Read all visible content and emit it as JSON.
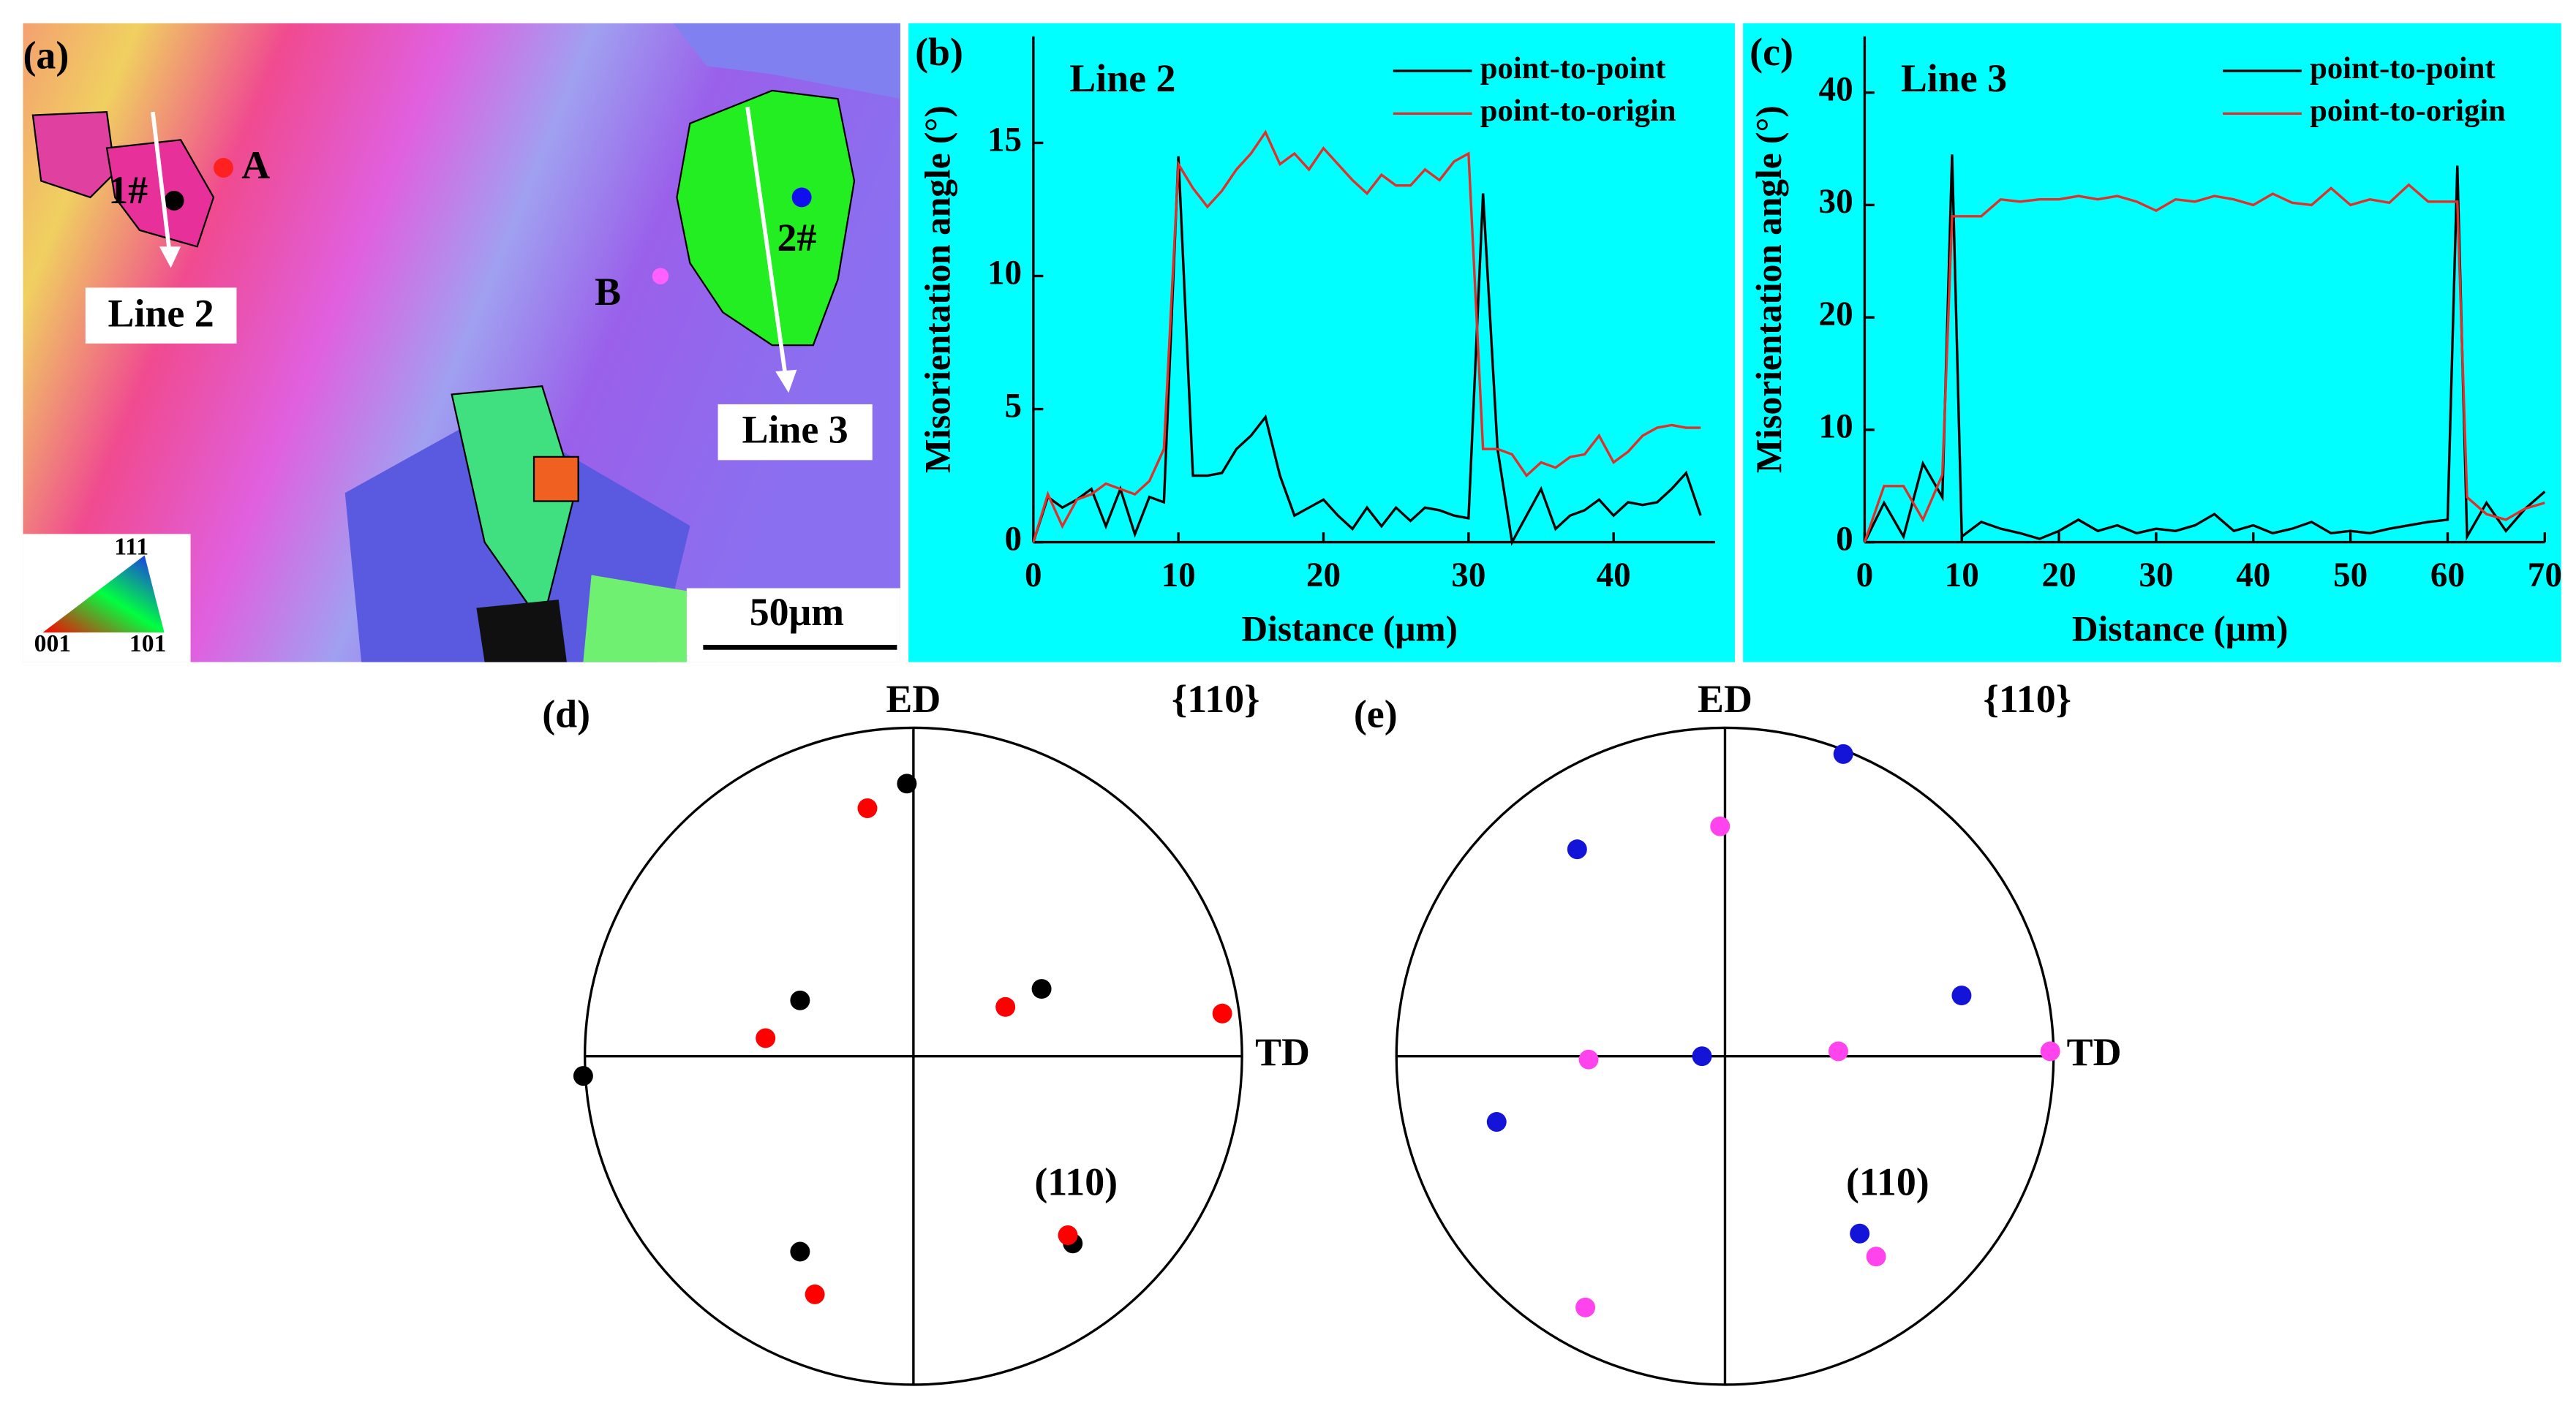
{
  "panel_a": {
    "label": "(a)",
    "point_a": "A",
    "point_b": "B",
    "grain_1": "1#",
    "grain_2": "2#",
    "line_2": "Line 2",
    "line_3": "Line 3",
    "scale": "50μm",
    "key_111": "111",
    "key_001": "001",
    "key_101": "101"
  },
  "chart_data": [
    {
      "type": "line",
      "panel": "(b)",
      "title": "Line 2",
      "xlabel": "Distance (μm)",
      "ylabel": "Misorientation angle (°)",
      "x": [
        0,
        1,
        2,
        3,
        4,
        5,
        6,
        7,
        8,
        9,
        10,
        11,
        12,
        13,
        14,
        15,
        16,
        17,
        18,
        19,
        20,
        21,
        22,
        23,
        24,
        25,
        26,
        27,
        28,
        29,
        30,
        31,
        32,
        33,
        34,
        35,
        36,
        37,
        38,
        39,
        40,
        41,
        42,
        43,
        44,
        45,
        46
      ],
      "series": [
        {
          "name": "point-to-point",
          "color": "#000000",
          "values": [
            0,
            1.7,
            1.3,
            1.6,
            2.0,
            0.6,
            2.0,
            0.3,
            1.7,
            1.5,
            14.5,
            2.5,
            2.5,
            2.6,
            3.5,
            4.0,
            4.7,
            2.5,
            1.0,
            1.3,
            1.6,
            1.0,
            0.5,
            1.3,
            0.6,
            1.3,
            0.8,
            1.3,
            1.2,
            1.0,
            0.9,
            13.1,
            3.5,
            0,
            1.0,
            2.0,
            0.5,
            1.0,
            1.2,
            1.6,
            1.0,
            1.5,
            1.4,
            1.5,
            2.0,
            2.6,
            1.0
          ]
        },
        {
          "name": "point-to-origin",
          "color": "#e0302a",
          "values": [
            0,
            1.8,
            0.6,
            1.6,
            1.8,
            2.2,
            2.0,
            1.8,
            2.3,
            3.5,
            14.2,
            13.3,
            12.6,
            13.2,
            14.0,
            14.6,
            15.4,
            14.2,
            14.6,
            14.0,
            14.8,
            14.2,
            13.6,
            13.1,
            13.8,
            13.4,
            13.4,
            14.0,
            13.6,
            14.3,
            14.6,
            3.5,
            3.5,
            3.3,
            2.5,
            3.0,
            2.8,
            3.2,
            3.3,
            4.0,
            3.0,
            3.4,
            4.0,
            4.3,
            4.4,
            4.3,
            4.3
          ]
        }
      ],
      "xlim": [
        0,
        47
      ],
      "xticks": [
        0,
        10,
        20,
        30,
        40
      ],
      "ylim": [
        0,
        19
      ],
      "yticks": [
        0,
        5,
        10,
        15
      ],
      "background": "#00ffff"
    },
    {
      "type": "line",
      "panel": "(c)",
      "title": "Line 3",
      "xlabel": "Distance (μm)",
      "ylabel": "Misorientation angle (°)",
      "x": [
        0,
        2,
        4,
        6,
        8,
        9,
        10,
        12,
        14,
        16,
        18,
        20,
        22,
        24,
        26,
        28,
        30,
        32,
        34,
        36,
        38,
        40,
        42,
        44,
        46,
        48,
        50,
        52,
        54,
        56,
        58,
        60,
        61,
        62,
        64,
        66,
        68,
        70
      ],
      "series": [
        {
          "name": "point-to-point",
          "color": "#000000",
          "values": [
            0,
            3.5,
            0.5,
            7,
            4,
            34.5,
            0.5,
            1.8,
            1.2,
            0.8,
            0.3,
            1.0,
            2.0,
            1.0,
            1.5,
            0.8,
            1.2,
            1.0,
            1.5,
            2.5,
            1.0,
            1.5,
            0.8,
            1.2,
            1.8,
            0.8,
            1.0,
            0.8,
            1.2,
            1.5,
            1.8,
            2.0,
            33.5,
            0.5,
            3.5,
            1.0,
            3.0,
            4.5
          ]
        },
        {
          "name": "point-to-origin",
          "color": "#e0302a",
          "values": [
            0,
            5,
            5,
            2,
            6,
            29,
            29,
            29,
            30.5,
            30.3,
            30.5,
            30.5,
            30.8,
            30.5,
            30.8,
            30.3,
            29.5,
            30.5,
            30.3,
            30.8,
            30.5,
            30,
            31,
            30.2,
            30,
            31.5,
            30,
            30.5,
            30.2,
            31.8,
            30.3,
            30.3,
            30.3,
            4,
            2.5,
            2,
            3,
            3.5
          ]
        }
      ],
      "xlim": [
        0,
        70
      ],
      "xticks": [
        0,
        10,
        20,
        30,
        40,
        50,
        60,
        70
      ],
      "ylim": [
        0,
        45
      ],
      "yticks": [
        0,
        10,
        20,
        30,
        40
      ],
      "background": "#00ffff"
    },
    {
      "type": "pole",
      "panel": "(d)",
      "title": "{110}",
      "top_label": "ED",
      "right_label": "TD",
      "annotation": "(110)",
      "xlim": [
        -1,
        1
      ],
      "ylim": [
        -1,
        1
      ],
      "series": [
        {
          "color": "#000000",
          "x": [
            -0.02,
            -0.345,
            0.39,
            -1.005,
            -0.345,
            0.485
          ],
          "values": [
            0.83,
            0.17,
            0.205,
            -0.06,
            -0.595,
            -0.57
          ]
        },
        {
          "color": "#ff0000",
          "x": [
            -0.14,
            -0.45,
            0.28,
            0.94,
            0.47,
            -0.3
          ],
          "values": [
            0.755,
            0.055,
            0.15,
            0.13,
            -0.545,
            -0.725
          ]
        }
      ]
    },
    {
      "type": "pole",
      "panel": "(e)",
      "title": "{110}",
      "top_label": "ED",
      "right_label": "TD",
      "annotation": "(110)",
      "xlim": [
        -1,
        1
      ],
      "ylim": [
        -1,
        1
      ],
      "series": [
        {
          "color": "#1414d8",
          "x": [
            0.36,
            -0.45,
            0.72,
            -0.07,
            -0.695,
            0.41
          ],
          "values": [
            0.92,
            0.63,
            0.185,
            0,
            -0.2,
            -0.54
          ]
        },
        {
          "color": "#ff44ee",
          "x": [
            -0.015,
            -0.415,
            0.345,
            0.99,
            -0.425,
            0.46
          ],
          "values": [
            0.7,
            -0.01,
            0.015,
            0.015,
            -0.765,
            -0.61
          ]
        }
      ]
    }
  ]
}
